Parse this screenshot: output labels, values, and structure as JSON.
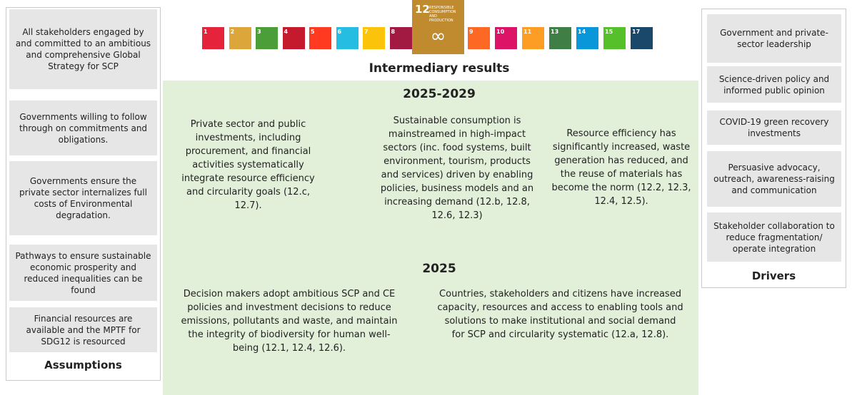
{
  "sdg_icons": [
    {
      "number": "1",
      "color": "#e5243b"
    },
    {
      "number": "2",
      "color": "#dda63a"
    },
    {
      "number": "3",
      "color": "#4c9f38"
    },
    {
      "number": "4",
      "color": "#c5192d"
    },
    {
      "number": "5",
      "color": "#ff3a21"
    },
    {
      "number": "6",
      "color": "#26bde2"
    },
    {
      "number": "7",
      "color": "#fcc30b"
    },
    {
      "number": "8",
      "color": "#a21942"
    },
    {
      "number": "9",
      "color": "#fd6925"
    },
    {
      "number": "10",
      "color": "#dd1367"
    },
    {
      "number": "11",
      "color": "#fd9d24"
    },
    {
      "number": "13",
      "color": "#3f7e44"
    },
    {
      "number": "14",
      "color": "#0a97d9"
    },
    {
      "number": "15",
      "color": "#56c02b"
    },
    {
      "number": "17",
      "color": "#19486a"
    }
  ],
  "featured_sdg": {
    "number": "12",
    "label": "RESPONSIBLE CONSUMPTION AND PRODUCTION",
    "color": "#bf8b2e"
  },
  "assumptions": {
    "title": "Assumptions",
    "items": [
      "All stakeholders engaged by and committed to an ambitious and comprehensive Global Strategy for SCP",
      "Governments willing to follow through on commitments and obligations.",
      "Governments ensure the private sector internalizes full costs of Environmental degradation.",
      "Pathways to ensure sustainable economic prosperity and reduced inequalities can be found",
      "Financial resources are available and the MPTF for SDG12 is resourced"
    ]
  },
  "drivers": {
    "title": "Drivers",
    "items": [
      "Government and private-sector leadership",
      "Science-driven policy and informed public opinion",
      "COVID-19 green recovery investments",
      "Persuasive advocacy, outreach, awareness-raising and communication",
      "Stakeholder collaboration to reduce fragmentation/ operate integration"
    ]
  },
  "results": {
    "title": "Intermediary results",
    "period_1": "2025-2029",
    "period_1_items": [
      "Private sector and public investments, including procurement, and financial activities systematically integrate resource efficiency and circularity goals (12.c, 12.7).",
      "Sustainable consumption is mainstreamed in high-impact sectors (inc. food systems, built environment, tourism, products and services) driven by enabling policies, business models and an increasing demand (12.b, 12.8, 12.6, 12.3)",
      "Resource efficiency has significantly increased, waste generation has reduced, and the reuse of materials has become the norm (12.2, 12.3, 12.4, 12.5)."
    ],
    "period_2": "2025",
    "period_2_items": [
      "Decision makers adopt ambitious SCP and CE policies and investment decisions to reduce emissions, pollutants and waste, and maintain the integrity of biodiversity for human well-being (12.1, 12.4, 12.6).",
      "Countries, stakeholders and citizens have increased capacity, resources and access to enabling tools and solutions to make institutional and social demand for SCP and circularity systematic (12.a, 12.8)."
    ]
  }
}
